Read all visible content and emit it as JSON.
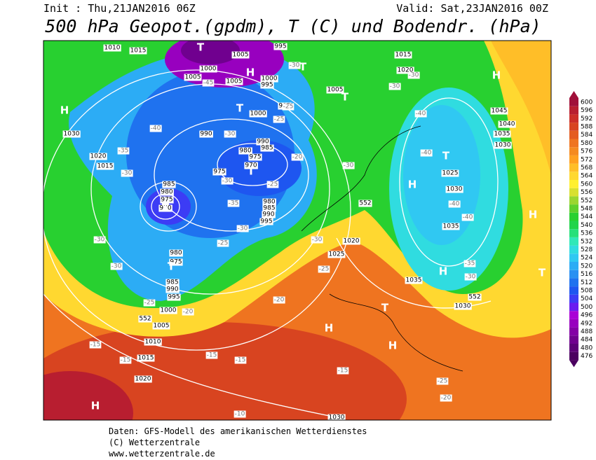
{
  "header": {
    "init": "Init : Thu,21JAN2016 06Z",
    "valid": "Valid: Sat,23JAN2016 00Z",
    "title": "500 hPa Geopot.(gpdm), T (C) und Bodendr. (hPa)"
  },
  "map": {
    "pressure_labels": [
      "1010",
      "1015",
      "1005",
      "995",
      "1000",
      "1005",
      "1005",
      "1000",
      "995",
      "1015",
      "1020",
      "1005",
      "995",
      "1000",
      "1030",
      "1045",
      "1040",
      "1035",
      "1030",
      "990",
      "990",
      "985",
      "980",
      "975",
      "970",
      "975",
      "1020",
      "1015",
      "985",
      "980",
      "975",
      "970",
      "1025",
      "1030",
      "980",
      "985",
      "990",
      "995",
      "1035",
      "1020",
      "1025",
      "980",
      "975",
      "985",
      "990",
      "995",
      "1000",
      "1005",
      "1010",
      "1015",
      "1020",
      "1035",
      "1030",
      "1030"
    ],
    "temperature_labels": [
      "-45",
      "-40",
      "-35",
      "-30",
      "-30",
      "-20",
      "-25",
      "-30",
      "-35",
      "-30",
      "-25",
      "-30",
      "-30",
      "-25",
      "-20",
      "-15",
      "-15",
      "-15",
      "-15",
      "-15",
      "-10",
      "-20",
      "-25",
      "-30",
      "-30",
      "-40",
      "-40",
      "-40",
      "-40",
      "-35",
      "-30",
      "-25",
      "-20",
      "-30",
      "-30",
      "-30",
      "-25",
      "-25"
    ],
    "pressure_centers": [
      "T",
      "H",
      "T",
      "H",
      "T",
      "T",
      "H",
      "T",
      "H",
      "T",
      "T",
      "T",
      "H",
      "H",
      "T",
      "H",
      "T",
      "H",
      "H"
    ],
    "thickness_labels": [
      "552",
      "552",
      "552"
    ]
  },
  "colorbar": {
    "levels": [
      476,
      480,
      484,
      488,
      492,
      496,
      500,
      504,
      508,
      512,
      516,
      520,
      524,
      528,
      532,
      536,
      540,
      544,
      548,
      552,
      556,
      560,
      564,
      568,
      572,
      576,
      580,
      584,
      588,
      592,
      596,
      600
    ],
    "colors": [
      "#4b0060",
      "#5c0078",
      "#70008f",
      "#8400a6",
      "#9800bf",
      "#aa00d6",
      "#6a1cf0",
      "#3c3cf5",
      "#1e56f0",
      "#1f72ef",
      "#2a90f2",
      "#2cacf5",
      "#30c8f2",
      "#30dce0",
      "#2fe8b8",
      "#26e07a",
      "#20d44a",
      "#28d030",
      "#5ed02c",
      "#9ad630",
      "#d8e030",
      "#fff030",
      "#ffd830",
      "#ffbe28",
      "#ffa020",
      "#f58a20",
      "#ef7420",
      "#e45c20",
      "#d84420",
      "#cc2e28",
      "#b81e30",
      "#a0103a"
    ]
  },
  "footer": {
    "lines": [
      "Daten: GFS-Modell des amerikanischen Wetterdienstes",
      "(C) Wetterzentrale",
      "www.wetterzentrale.de"
    ]
  }
}
